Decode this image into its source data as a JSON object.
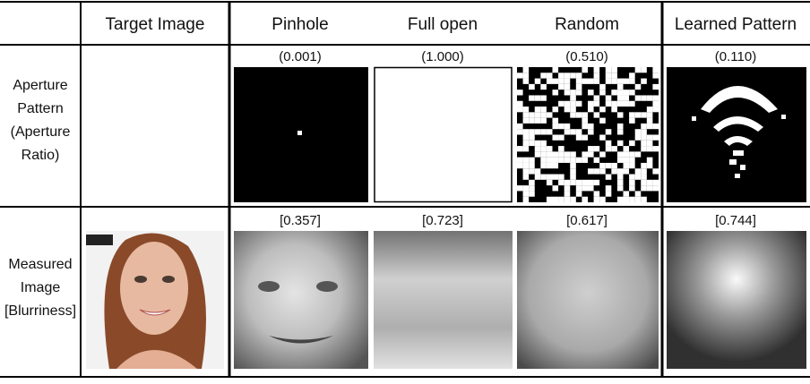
{
  "table": {
    "columns": [
      "Target Image",
      "Pinhole",
      "Full open",
      "Random",
      "Learned Pattern"
    ],
    "rows": [
      {
        "label_lines": [
          "Aperture",
          "Pattern",
          "(Aperture",
          "Ratio)"
        ],
        "values": [
          "(0.001)",
          "(1.000)",
          "(0.510)",
          "(0.110)"
        ]
      },
      {
        "label_lines": [
          "Measured",
          "Image",
          "[Blurriness]"
        ],
        "values": [
          "[0.357]",
          "[0.723]",
          "[0.617]",
          "[0.744]"
        ]
      }
    ]
  }
}
